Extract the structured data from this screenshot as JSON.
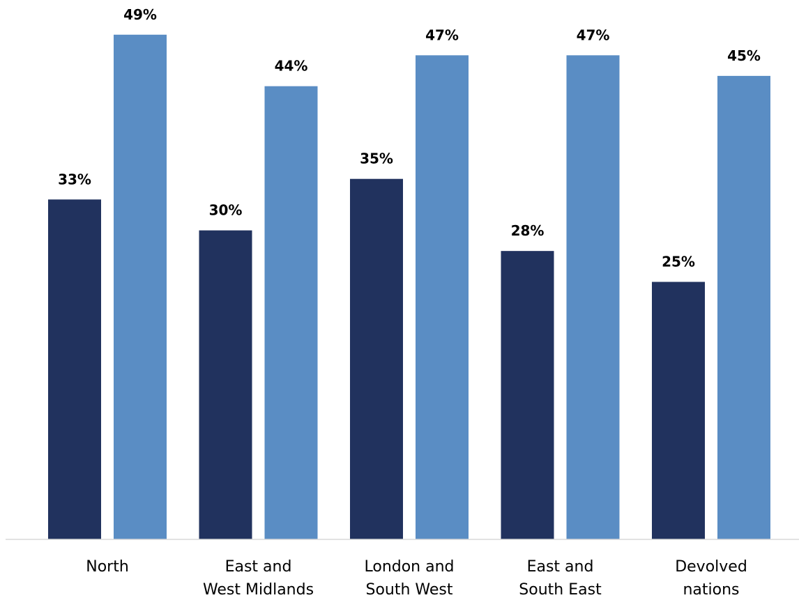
{
  "chart_data": {
    "type": "bar",
    "categories": [
      [
        "North"
      ],
      [
        "East and",
        "West Midlands"
      ],
      [
        "London and",
        "South West"
      ],
      [
        "East and",
        "South East"
      ],
      [
        "Devolved",
        "nations"
      ]
    ],
    "series": [
      {
        "color": "#21325e",
        "values": [
          33,
          30,
          35,
          28,
          25
        ],
        "labels": [
          "33%",
          "30%",
          "35%",
          "28%",
          "25%"
        ]
      },
      {
        "color": "#5a8dc4",
        "values": [
          49,
          44,
          47,
          47,
          45
        ],
        "labels": [
          "49%",
          "44%",
          "47%",
          "47%",
          "45%"
        ]
      }
    ],
    "ylim": [
      0,
      50
    ],
    "value_format": "percent",
    "grid": false,
    "axis_color": "#d9d9d9"
  }
}
